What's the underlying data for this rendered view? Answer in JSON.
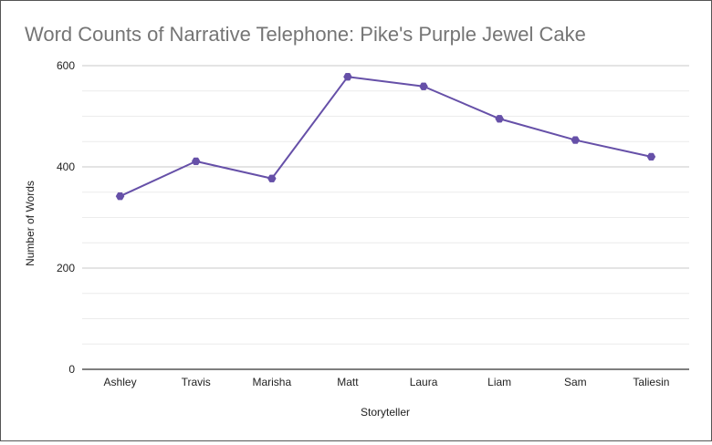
{
  "chart_data": {
    "type": "line",
    "title": "Word Counts of Narrative Telephone: Pike's Purple Jewel Cake",
    "xlabel": "Storyteller",
    "ylabel": "Number of Words",
    "categories": [
      "Ashley",
      "Travis",
      "Marisha",
      "Matt",
      "Laura",
      "Liam",
      "Sam",
      "Taliesin"
    ],
    "series": [
      {
        "name": "Number of Words",
        "values": [
          342,
          411,
          377,
          578,
          559,
          495,
          453,
          420
        ]
      }
    ],
    "ylim": [
      0,
      600
    ],
    "yticks": [
      "0",
      "200",
      "400",
      "600"
    ],
    "grid": true,
    "legend": "none",
    "colors": {
      "line": "#6650a8",
      "grid_major": "#c8c8c8",
      "grid_minor": "#ececec",
      "axis": "#333333",
      "title": "#757575",
      "text": "#222222"
    }
  }
}
